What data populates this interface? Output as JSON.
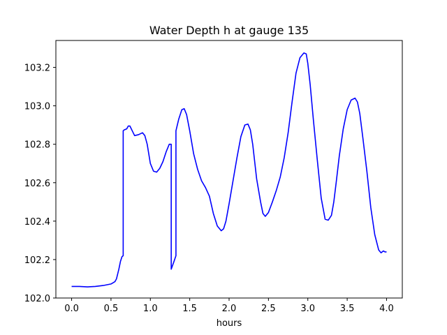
{
  "chart_data": {
    "type": "line",
    "title": "Water Depth h at gauge 135",
    "xlabel": "hours",
    "ylabel": "",
    "xlim": [
      -0.2,
      4.2
    ],
    "ylim": [
      102.0,
      103.34
    ],
    "xticks": [
      0.0,
      0.5,
      1.0,
      1.5,
      2.0,
      2.5,
      3.0,
      3.5,
      4.0
    ],
    "xtick_labels": [
      "0.0",
      "0.5",
      "1.0",
      "1.5",
      "2.0",
      "2.5",
      "3.0",
      "3.5",
      "4.0"
    ],
    "yticks": [
      102.0,
      102.2,
      102.4,
      102.6,
      102.8,
      103.0,
      103.2
    ],
    "ytick_labels": [
      "102.0",
      "102.2",
      "102.4",
      "102.6",
      "102.8",
      "103.0",
      "103.2"
    ],
    "grid": false,
    "series": [
      {
        "color": "#0000ff",
        "x": [
          0.0,
          0.1,
          0.2,
          0.3,
          0.4,
          0.5,
          0.55,
          0.57,
          0.6,
          0.62,
          0.64,
          0.655,
          0.655,
          0.67,
          0.7,
          0.72,
          0.74,
          0.77,
          0.8,
          0.85,
          0.9,
          0.93,
          0.96,
          1.0,
          1.04,
          1.08,
          1.12,
          1.16,
          1.2,
          1.24,
          1.265,
          1.265,
          1.3,
          1.325,
          1.325,
          1.36,
          1.4,
          1.43,
          1.46,
          1.5,
          1.55,
          1.6,
          1.65,
          1.7,
          1.75,
          1.8,
          1.85,
          1.9,
          1.93,
          1.96,
          2.0,
          2.05,
          2.1,
          2.15,
          2.2,
          2.24,
          2.27,
          2.3,
          2.35,
          2.4,
          2.43,
          2.46,
          2.5,
          2.55,
          2.6,
          2.65,
          2.7,
          2.75,
          2.8,
          2.85,
          2.9,
          2.95,
          2.98,
          3.0,
          3.03,
          3.07,
          3.12,
          3.17,
          3.22,
          3.26,
          3.3,
          3.33,
          3.36,
          3.4,
          3.45,
          3.5,
          3.55,
          3.6,
          3.63,
          3.66,
          3.7,
          3.75,
          3.8,
          3.85,
          3.9,
          3.93,
          3.96,
          3.98,
          4.0
        ],
        "y": [
          102.06,
          102.06,
          102.058,
          102.06,
          102.065,
          102.073,
          102.085,
          102.1,
          102.15,
          102.19,
          102.215,
          102.22,
          102.87,
          102.875,
          102.88,
          102.895,
          102.895,
          102.87,
          102.845,
          102.85,
          102.86,
          102.845,
          102.8,
          102.7,
          102.66,
          102.655,
          102.675,
          102.71,
          102.76,
          102.8,
          102.8,
          102.15,
          102.19,
          102.22,
          102.87,
          102.93,
          102.98,
          102.985,
          102.955,
          102.87,
          102.75,
          102.67,
          102.61,
          102.575,
          102.53,
          102.44,
          102.375,
          102.35,
          102.36,
          102.4,
          102.49,
          102.61,
          102.73,
          102.84,
          102.9,
          102.905,
          102.875,
          102.8,
          102.62,
          102.5,
          102.44,
          102.425,
          102.445,
          102.5,
          102.56,
          102.63,
          102.73,
          102.86,
          103.02,
          103.17,
          103.25,
          103.275,
          103.27,
          103.22,
          103.11,
          102.93,
          102.72,
          102.52,
          102.41,
          102.405,
          102.43,
          102.5,
          102.6,
          102.74,
          102.88,
          102.98,
          103.03,
          103.04,
          103.02,
          102.96,
          102.83,
          102.66,
          102.47,
          102.33,
          102.25,
          102.235,
          102.245,
          102.24,
          102.24
        ]
      }
    ]
  }
}
